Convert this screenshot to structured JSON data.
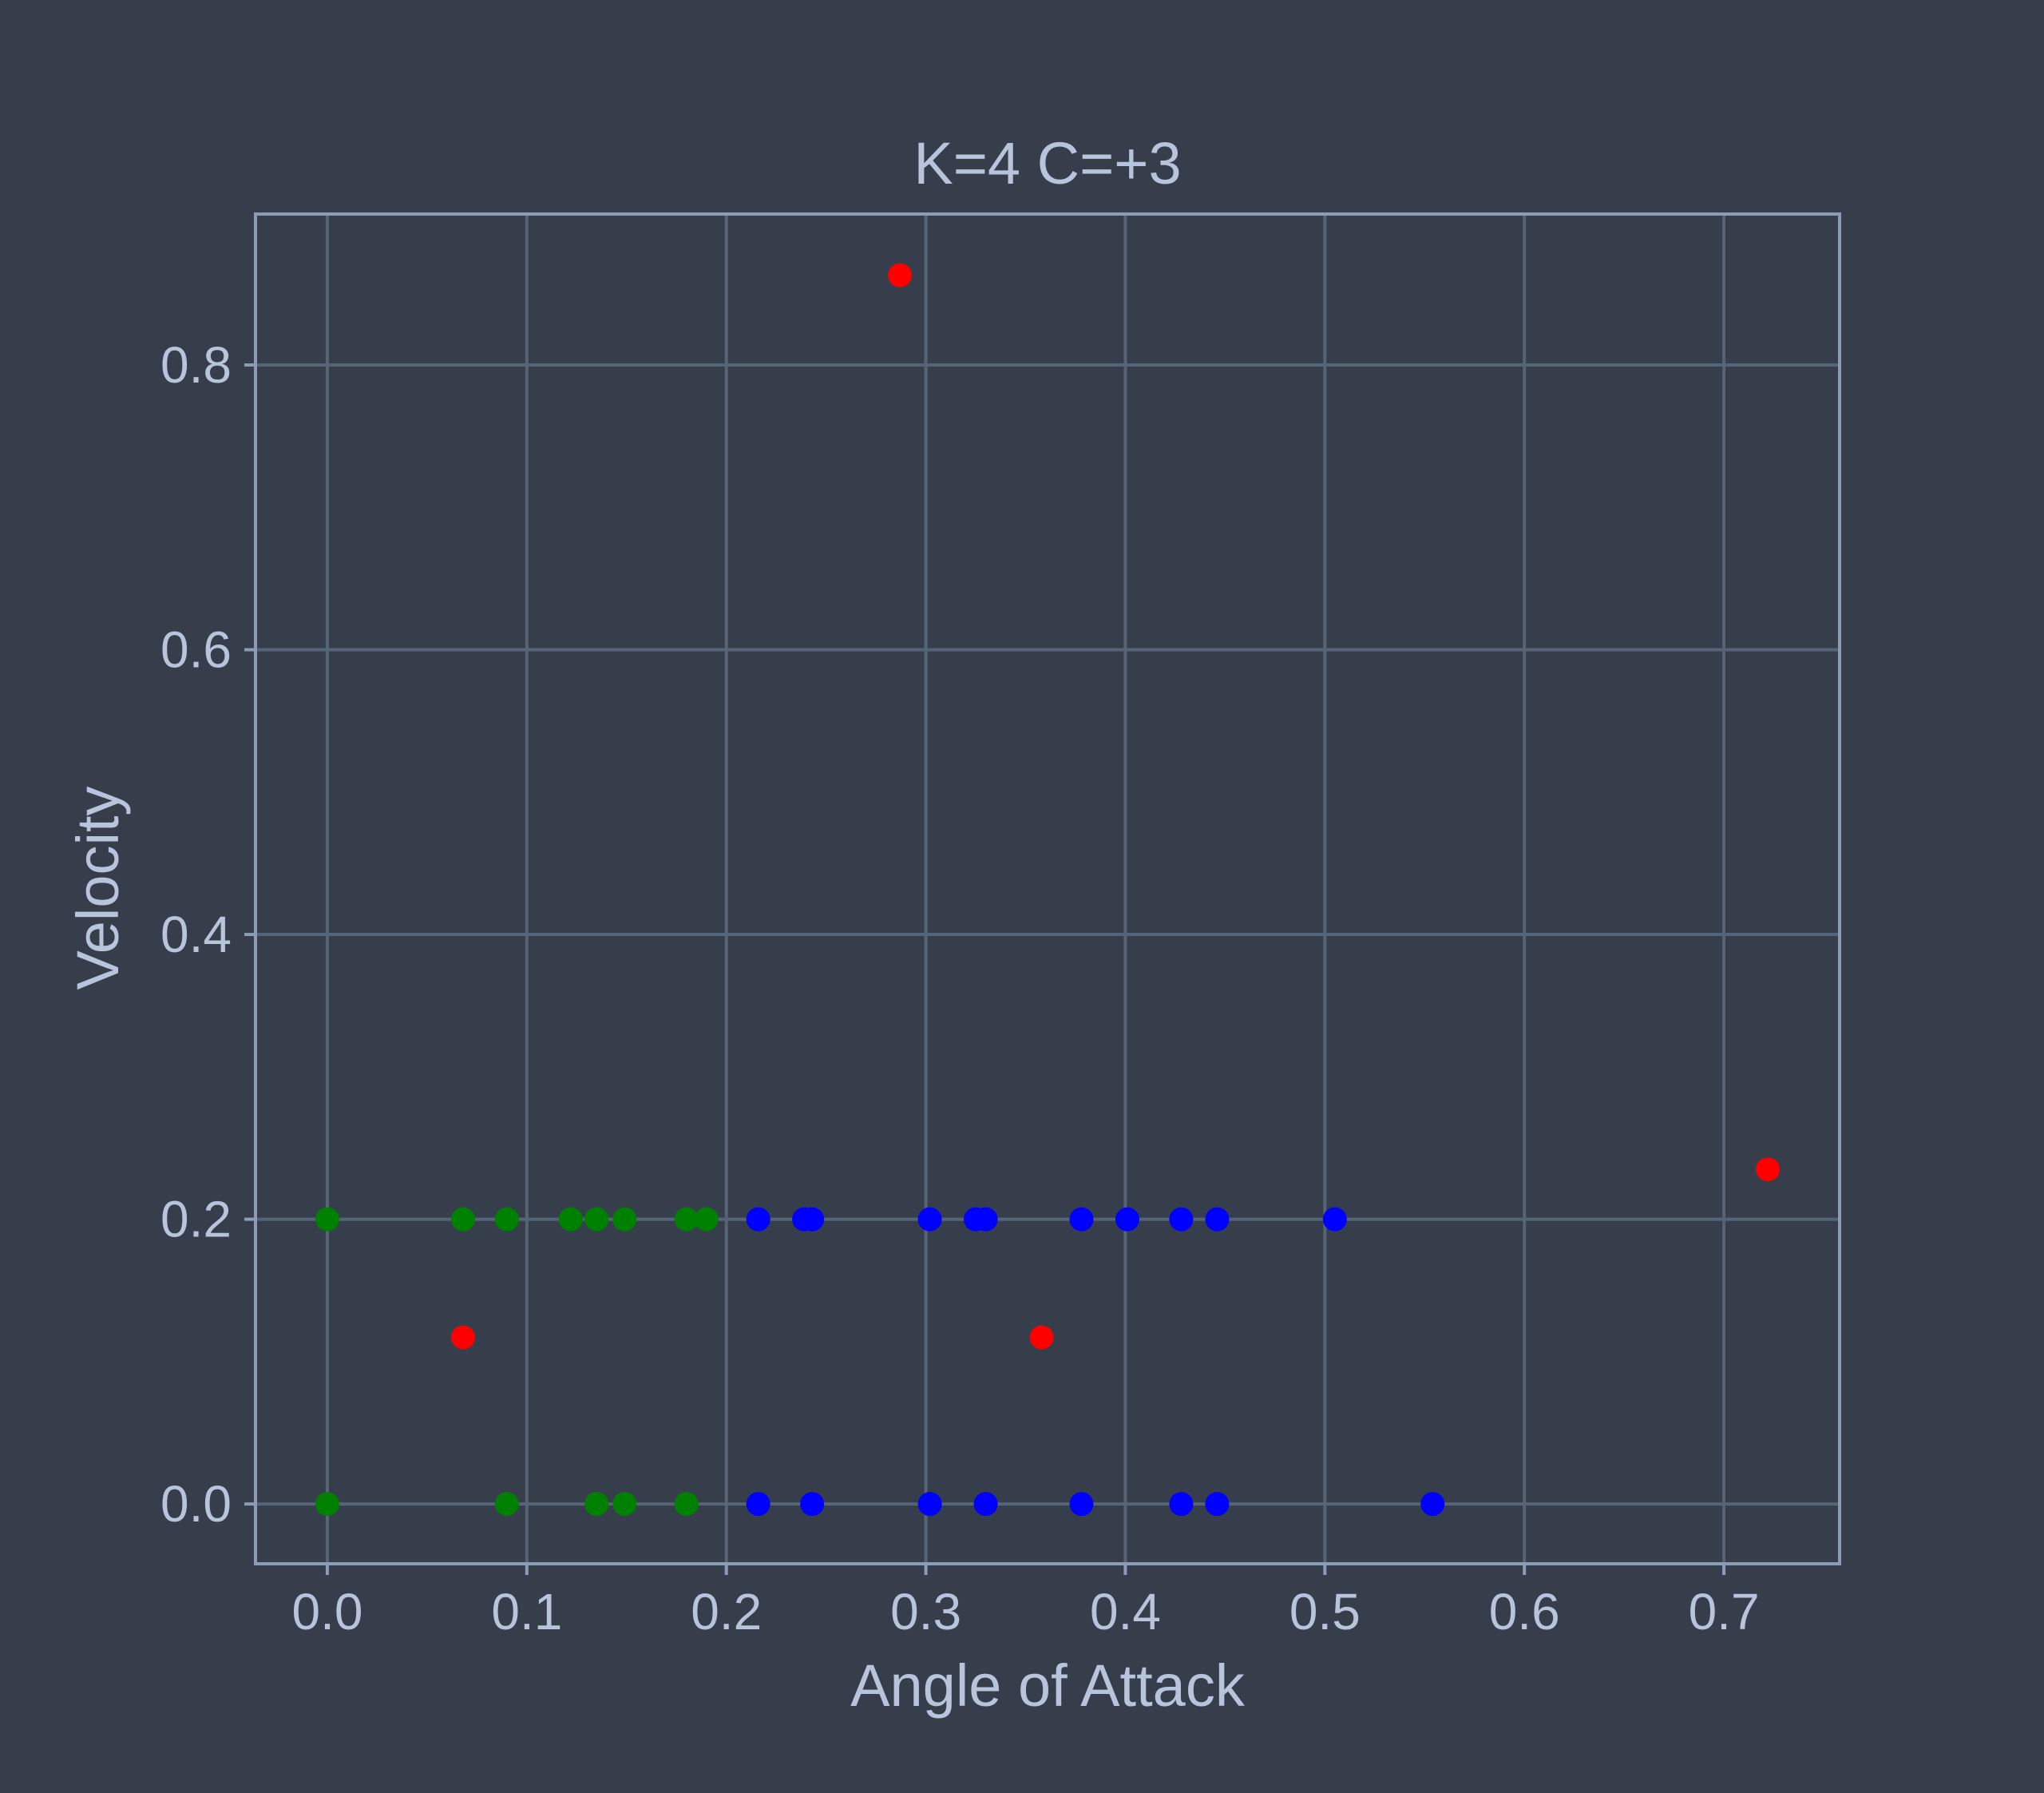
{
  "chart_data": {
    "type": "scatter",
    "title": "K=4 C=+3",
    "xlabel": "Angle of Attack",
    "ylabel": "Velocity",
    "xlim": [
      -0.036,
      0.758
    ],
    "ylim": [
      -0.042,
      0.906
    ],
    "xticks": [
      0.0,
      0.1,
      0.2,
      0.3,
      0.4,
      0.5,
      0.6,
      0.7
    ],
    "yticks": [
      0.0,
      0.2,
      0.4,
      0.6,
      0.8
    ],
    "xtick_labels": [
      "0.0",
      "0.1",
      "0.2",
      "0.3",
      "0.4",
      "0.5",
      "0.6",
      "0.7"
    ],
    "ytick_labels": [
      "0.0",
      "0.2",
      "0.4",
      "0.6",
      "0.8"
    ],
    "grid": true,
    "legend": null,
    "series": [
      {
        "color": "#008000",
        "x": [
          0.0,
          0.068,
          0.09,
          0.122,
          0.135,
          0.149,
          0.18,
          0.19,
          0.0,
          0.09,
          0.135,
          0.149,
          0.18
        ],
        "y": [
          0.2,
          0.2,
          0.2,
          0.2,
          0.2,
          0.2,
          0.2,
          0.2,
          0.0,
          0.0,
          0.0,
          0.0,
          0.0
        ]
      },
      {
        "color": "#0000ff",
        "x": [
          0.216,
          0.239,
          0.243,
          0.302,
          0.325,
          0.33,
          0.378,
          0.401,
          0.428,
          0.446,
          0.505,
          0.216,
          0.243,
          0.302,
          0.33,
          0.378,
          0.428,
          0.446,
          0.554
        ],
        "y": [
          0.2,
          0.2,
          0.2,
          0.2,
          0.2,
          0.2,
          0.2,
          0.2,
          0.2,
          0.2,
          0.2,
          0.0,
          0.0,
          0.0,
          0.0,
          0.0,
          0.0,
          0.0,
          0.0
        ]
      },
      {
        "color": "#ff0000",
        "x": [
          0.068,
          0.287,
          0.358,
          0.722
        ],
        "y": [
          0.117,
          0.863,
          0.117,
          0.235
        ]
      }
    ]
  },
  "colors": {
    "background": "#363e4b",
    "grid": "#566478",
    "axis": "#8d9bb8",
    "text": "#b8c4dc"
  }
}
